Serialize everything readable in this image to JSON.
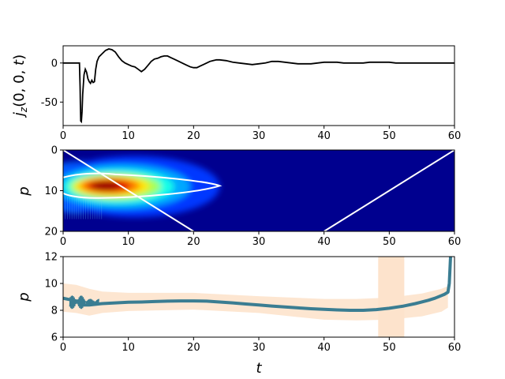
{
  "figure": {
    "background": "#ffffff"
  },
  "chart_data": [
    {
      "type": "line",
      "panel": "top",
      "ylabel": "j_z(0, 0, t)",
      "xlabel": "",
      "xlim": [
        0,
        60
      ],
      "ylim": [
        -80,
        22
      ],
      "xticks": [
        0,
        10,
        20,
        30,
        40,
        50,
        60
      ],
      "yticks": [
        0,
        -50
      ],
      "line_color": "#000000",
      "series": [
        {
          "x": [
            0,
            2.5,
            2.6,
            2.65,
            2.7,
            2.8,
            2.9,
            3.0,
            3.2,
            3.4,
            3.6,
            3.8,
            4.0,
            4.2,
            4.4,
            4.6,
            4.8,
            5.0,
            5.2,
            5.5,
            6.0,
            6.5,
            7.0,
            7.5,
            8.0,
            8.5,
            9.0,
            9.5,
            10.0,
            10.5,
            11.0,
            11.5,
            12.0,
            12.5,
            13.0,
            13.5,
            14.0,
            14.5,
            15.0,
            15.5,
            16.0,
            16.5,
            17.0,
            17.5,
            18.0,
            18.5,
            19.0,
            19.5,
            20.0,
            20.5,
            21.0,
            21.5,
            22.0,
            22.5,
            23.0,
            23.5,
            24.0,
            25.0,
            26.0,
            27.0,
            28.0,
            29.0,
            30.0,
            31.0,
            32.0,
            33.0,
            34.0,
            35.0,
            36.0,
            37.0,
            38.0,
            39.0,
            40.0,
            41.0,
            42.0,
            43.0,
            44.0,
            45.0,
            46.0,
            47.0,
            48.0,
            49.0,
            50.0,
            51.0,
            52.0,
            53.0,
            54.0,
            55.0,
            56.0,
            57.0,
            58.0,
            59.0,
            60.0
          ],
          "y": [
            0,
            0,
            -30,
            -55,
            -74,
            -75,
            -62,
            -40,
            -15,
            -8,
            -12,
            -20,
            -24,
            -26,
            -22,
            -25,
            -24,
            -8,
            2,
            8,
            12,
            16,
            18,
            17,
            14,
            8,
            3,
            0,
            -2,
            -4,
            -5,
            -8,
            -11,
            -8,
            -3,
            2,
            5,
            6,
            8,
            9,
            9,
            7,
            5,
            3,
            1,
            -1,
            -3,
            -5,
            -6,
            -6,
            -4,
            -2,
            0,
            2,
            3,
            4,
            4,
            3,
            1,
            0,
            -1,
            -2,
            -1,
            0,
            2,
            2,
            1,
            0,
            -1,
            -1,
            -1,
            0,
            1,
            1,
            1,
            0,
            0,
            0,
            0,
            1,
            1,
            1,
            1,
            0,
            0,
            0,
            0,
            0,
            0,
            0,
            0,
            0,
            0
          ]
        }
      ]
    },
    {
      "type": "heatmap",
      "panel": "middle",
      "ylabel": "p",
      "xlabel": "",
      "xlim": [
        0,
        60
      ],
      "ylim": [
        20,
        0
      ],
      "xticks": [
        0,
        10,
        20,
        30,
        40,
        50,
        60
      ],
      "yticks": [
        0,
        10,
        20
      ],
      "colormap": "jet",
      "peak": {
        "t": 7,
        "p": 8.8
      },
      "contour_color": "#ffffff",
      "contour_end_t": 24,
      "white_lines": [
        {
          "x": [
            0,
            20
          ],
          "y": [
            0,
            20
          ]
        },
        {
          "x": [
            40,
            60
          ],
          "y": [
            20,
            0
          ]
        }
      ]
    },
    {
      "type": "line",
      "panel": "bottom",
      "ylabel": "p",
      "xlabel": "t",
      "xlim": [
        0,
        60
      ],
      "ylim": [
        6,
        12
      ],
      "xticks": [
        0,
        10,
        20,
        30,
        40,
        50,
        60
      ],
      "yticks": [
        6,
        8,
        10,
        12
      ],
      "line_color": "#3a7d92",
      "band_color": "#fde3cc",
      "band_vertical": {
        "x0": 48.3,
        "x1": 52.3
      },
      "series": [
        {
          "x": [
            0,
            1,
            2,
            3,
            4,
            5,
            6,
            8,
            10,
            12,
            14,
            16,
            18,
            20,
            22,
            24,
            26,
            28,
            30,
            32,
            34,
            36,
            38,
            40,
            42,
            44,
            46,
            48,
            50,
            52,
            54,
            56,
            57,
            58,
            58.5,
            59,
            59.2,
            59.3,
            59.4
          ],
          "y": [
            8.9,
            8.8,
            8.7,
            8.4,
            8.4,
            8.45,
            8.5,
            8.55,
            8.6,
            8.62,
            8.65,
            8.68,
            8.7,
            8.7,
            8.68,
            8.62,
            8.55,
            8.47,
            8.4,
            8.32,
            8.25,
            8.18,
            8.12,
            8.07,
            8.03,
            8.0,
            8.0,
            8.05,
            8.15,
            8.3,
            8.5,
            8.75,
            8.9,
            9.1,
            9.2,
            9.35,
            10.0,
            11.0,
            12.0
          ]
        }
      ],
      "band": {
        "x": [
          0,
          2,
          4,
          6,
          10,
          20,
          30,
          40,
          45,
          50,
          55,
          58,
          59
        ],
        "upper": [
          10.0,
          9.9,
          9.6,
          9.4,
          9.3,
          9.3,
          9.05,
          8.85,
          8.85,
          8.95,
          9.25,
          9.6,
          9.8
        ],
        "lower": [
          7.9,
          7.8,
          7.6,
          7.8,
          7.95,
          8.05,
          7.8,
          7.3,
          7.25,
          7.3,
          7.55,
          7.9,
          8.2
        ]
      }
    }
  ]
}
